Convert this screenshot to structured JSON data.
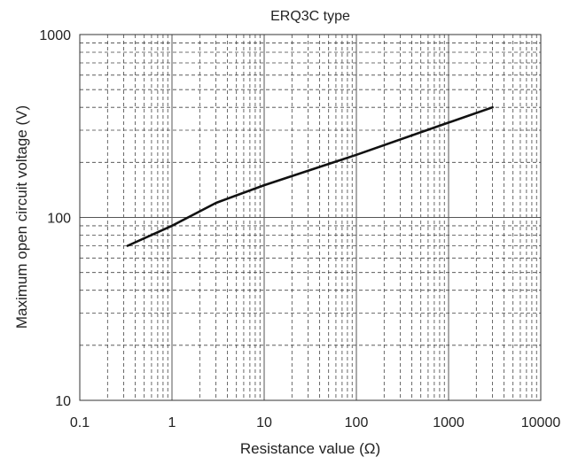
{
  "chart_data": {
    "type": "line",
    "title": "ERQ3C type",
    "xlabel": "Resistance value (Ω)",
    "ylabel": "Maximum open circuit voltage (V)",
    "x_scale": "log",
    "y_scale": "log",
    "xlim": [
      0.1,
      10000
    ],
    "ylim": [
      10,
      1000
    ],
    "x_ticks": [
      "0.1",
      "1",
      "10",
      "100",
      "1000",
      "10000"
    ],
    "y_ticks": [
      "10",
      "100",
      "1000"
    ],
    "grid": true,
    "series": [
      {
        "color": "#111111",
        "points": [
          [
            0.33,
            70
          ],
          [
            1,
            90
          ],
          [
            3,
            120
          ],
          [
            10,
            150
          ],
          [
            100,
            220
          ],
          [
            1000,
            330
          ],
          [
            3000,
            400
          ]
        ]
      }
    ]
  }
}
